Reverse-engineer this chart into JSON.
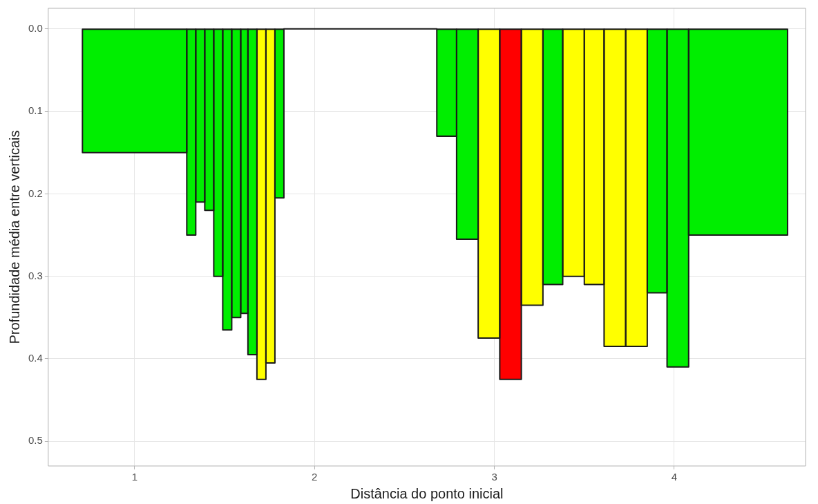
{
  "chart_data": {
    "type": "histogram",
    "xlabel": "Distância do ponto inicial",
    "ylabel": "Profundidade média entre verticais",
    "bins": [
      0.71,
      1.29,
      1.34,
      1.39,
      1.44,
      1.49,
      1.54,
      1.59,
      1.63,
      1.68,
      1.73,
      1.78,
      1.83,
      2.68,
      2.79,
      2.91,
      3.03,
      3.15,
      3.27,
      3.38,
      3.5,
      3.61,
      3.73,
      3.85,
      3.96,
      4.08,
      4.63
    ],
    "values": [
      0.15,
      0.25,
      0.21,
      0.22,
      0.3,
      0.365,
      0.35,
      0.345,
      0.395,
      0.425,
      0.405,
      0.205,
      0,
      0.13,
      0.255,
      0.375,
      0.425,
      0.335,
      0.31,
      0.3,
      0.31,
      0.385,
      0.385,
      0.32,
      0.41,
      0.25
    ],
    "colors": [
      "#00ee00",
      "#00ee00",
      "#00ee00",
      "#00ee00",
      "#00ee00",
      "#00ee00",
      "#00ee00",
      "#00ee00",
      "#00ee00",
      "#ffff00",
      "#ffff00",
      "#00ee00",
      "#1a1a1a",
      "#00ee00",
      "#00ee00",
      "#ffff00",
      "#ff0000",
      "#ffff00",
      "#00ee00",
      "#ffff00",
      "#ffff00",
      "#ffff00",
      "#ffff00",
      "#00ee00",
      "#00ee00",
      "#00ee00"
    ],
    "xlim": [
      0.52,
      4.73
    ],
    "xticks": [
      1,
      2,
      3,
      4
    ],
    "ylim": [
      0.53,
      -0.025
    ],
    "yticks": [
      {
        "value": 0,
        "label": "0.0"
      },
      0.1,
      0.2,
      0.3,
      0.4,
      0.5
    ],
    "grid": true,
    "legend": false
  }
}
